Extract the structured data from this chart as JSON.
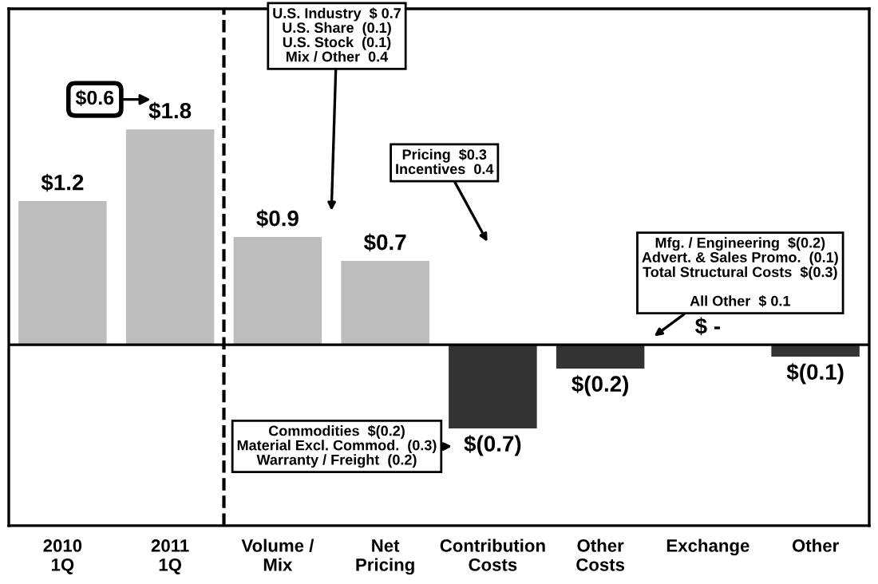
{
  "chart_data": {
    "type": "bar",
    "categories": [
      "2010\n1Q",
      "2011\n1Q",
      "Volume /\nMix",
      "Net\nPricing",
      "Contribution\nCosts",
      "Other\nCosts",
      "Exchange",
      "Other"
    ],
    "values": [
      1.2,
      1.8,
      0.9,
      0.7,
      -0.7,
      -0.2,
      0,
      -0.1
    ],
    "colors": [
      "#bdbdbd",
      "#bdbdbd",
      "#bdbdbd",
      "#bdbdbd",
      "#333333",
      "#333333",
      "#333333",
      "#333333"
    ],
    "value_labels": [
      "$1.2",
      "$1.8",
      "$0.9",
      "$0.7",
      "$(0.7)",
      "$(0.2)",
      "$ -",
      "$(0.1)"
    ],
    "annotations": [
      "$0.6",
      "U.S. Industry  $ 0.7\nU.S. Share  (0.1)\nU.S. Stock  (0.1)\nMix / Other  0.4",
      "Pricing  $0.3\nIncentives  0.4",
      "Mfg. / Engineering  $(0.2)\nAdvert. & Sales Promo.  (0.1)\nTotal Structural Costs  $(0.3)\n\nAll Other  $ 0.1",
      "Commodities  $(0.2)\nMaterial Excl. Commod.  (0.3)\nWarranty / Freight  (0.2)"
    ],
    "grid": false,
    "legend": false
  }
}
